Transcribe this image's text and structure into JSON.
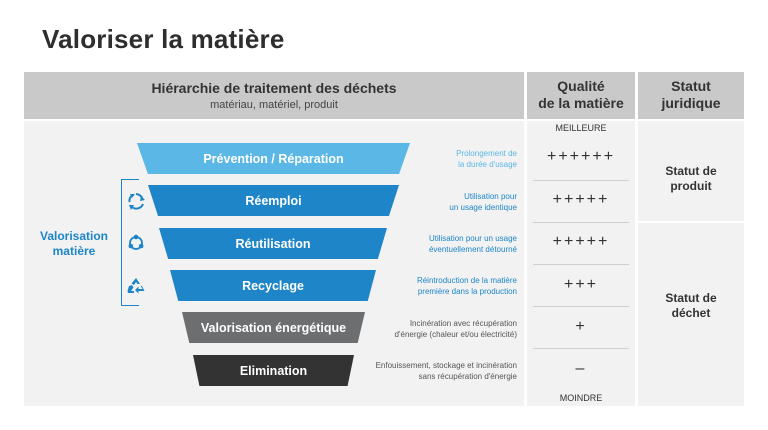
{
  "title": "Valoriser la matière",
  "header": {
    "hierarchy_title": "Hiérarchie de traitement des déchets",
    "hierarchy_sub": "matériau, matériel, produit",
    "quality_line1": "Qualité",
    "quality_line2": "de la matière",
    "status_line1": "Statut",
    "status_line2": "juridique"
  },
  "levels": [
    {
      "label": "Prévention / Réparation",
      "note1": "Prolongement de",
      "note2": "la durée d'usage",
      "quality": "++++++",
      "color": "#5bb7e5",
      "note_color": "#5bb7e5"
    },
    {
      "label": "Réemploi",
      "note1": "Utilisation pour",
      "note2": "un usage identique",
      "quality": "+++++",
      "color": "#1d85c8",
      "note_color": "#1d85c8"
    },
    {
      "label": "Réutilisation",
      "note1": "Utilisation pour un usage",
      "note2": "éventuellement détourné",
      "quality": "+++++",
      "color": "#1d85c8",
      "note_color": "#1d85c8"
    },
    {
      "label": "Recyclage",
      "note1": "Réintroduction de la matière",
      "note2": "première dans la production",
      "quality": "+++",
      "color": "#1d85c8",
      "note_color": "#1d85c8"
    },
    {
      "label": "Valorisation énergétique",
      "note1": "Incinération avec récupération",
      "note2": "d'énergie (chaleur et/ou électricité)",
      "quality": "+",
      "color": "#6d6e70",
      "note_color": "#555555"
    },
    {
      "label": "Elimination",
      "note1": "Enfouissement, stockage et incinération",
      "note2": "sans récupération d'énergie",
      "quality": "–",
      "color": "#333333",
      "note_color": "#555555"
    }
  ],
  "quality_top": "MEILLEURE",
  "quality_bottom": "MOINDRE",
  "status_product_line1": "Statut de",
  "status_product_line2": "produit",
  "status_waste_line1": "Statut de",
  "status_waste_line2": "déchet",
  "valorisation_line1": "Valorisation",
  "valorisation_line2": "matière",
  "icons": [
    "reuse-arrows-icon",
    "network-cycle-icon",
    "recycle-icon"
  ],
  "accent_color": "#1d85c8"
}
